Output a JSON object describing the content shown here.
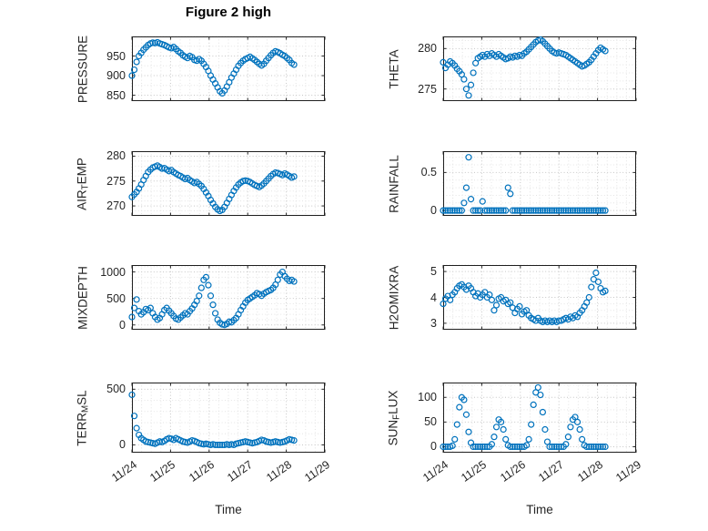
{
  "chart_data": {
    "type": "scatter",
    "title": "Figure 2 high",
    "xlabel": "Time",
    "marker_color": "#0072BD",
    "marker_style": "open-circle",
    "grid": "on-dotted-with-minor",
    "xlim": [
      0,
      5
    ],
    "xminor_step": 0.25,
    "xticks": [
      0,
      1,
      2,
      3,
      4,
      5
    ],
    "xtick_labels": [
      "11/24",
      "11/25",
      "11/26",
      "11/27",
      "11/28",
      "11/29"
    ],
    "x_unit": "days since 11/24",
    "t_days": [
      0,
      0.06,
      0.12,
      0.18,
      0.24,
      0.3,
      0.36,
      0.42,
      0.48,
      0.54,
      0.6,
      0.66,
      0.72,
      0.78,
      0.84,
      0.9,
      0.96,
      1.02,
      1.08,
      1.14,
      1.2,
      1.26,
      1.32,
      1.38,
      1.44,
      1.5,
      1.56,
      1.62,
      1.68,
      1.74,
      1.8,
      1.86,
      1.92,
      1.98,
      2.04,
      2.1,
      2.16,
      2.22,
      2.28,
      2.34,
      2.4,
      2.46,
      2.52,
      2.58,
      2.64,
      2.7,
      2.76,
      2.82,
      2.88,
      2.94,
      3,
      3.06,
      3.12,
      3.18,
      3.24,
      3.3,
      3.36,
      3.42,
      3.48,
      3.54,
      3.6,
      3.66,
      3.72,
      3.78,
      3.84,
      3.9,
      3.96,
      4.02,
      4.08,
      4.14,
      4.2
    ],
    "subplots": [
      {
        "name": "PRESSURE",
        "label_parts": [
          {
            "text": "PRESSURE"
          }
        ],
        "ylim": [
          835,
          1000
        ],
        "yticks": [
          850,
          900,
          950
        ],
        "yminor_step": 25,
        "values": [
          900,
          915,
          935,
          950,
          958,
          966,
          972,
          978,
          982,
          984,
          983,
          985,
          982,
          980,
          978,
          975,
          972,
          970,
          973,
          968,
          962,
          958,
          952,
          948,
          945,
          950,
          947,
          940,
          938,
          942,
          938,
          930,
          922,
          912,
          900,
          890,
          880,
          870,
          860,
          855,
          862,
          872,
          883,
          895,
          905,
          915,
          925,
          932,
          938,
          942,
          945,
          948,
          944,
          940,
          935,
          930,
          926,
          930,
          938,
          945,
          952,
          958,
          962,
          960,
          957,
          953,
          950,
          945,
          940,
          932,
          928
        ]
      },
      {
        "name": "THETA",
        "label_parts": [
          {
            "text": "THETA"
          }
        ],
        "ylim": [
          273.5,
          281.5
        ],
        "yticks": [
          275,
          280
        ],
        "yminor_step": 1,
        "values": [
          278.3,
          277.6,
          278.0,
          278.4,
          278.2,
          277.9,
          277.5,
          277.2,
          276.8,
          276.2,
          275.0,
          274.2,
          275.5,
          277.0,
          278.2,
          278.8,
          279.0,
          279.2,
          279.0,
          279.3,
          279.1,
          279.4,
          279.2,
          279.0,
          279.3,
          279.1,
          278.9,
          278.7,
          278.8,
          279.0,
          278.9,
          279.1,
          279.0,
          279.2,
          279.1,
          279.4,
          279.6,
          279.9,
          280.2,
          280.5,
          280.8,
          281.0,
          281.1,
          280.9,
          280.6,
          280.3,
          280.0,
          279.7,
          279.5,
          279.4,
          279.5,
          279.4,
          279.3,
          279.2,
          279.0,
          278.8,
          278.6,
          278.4,
          278.2,
          278.0,
          277.8,
          277.9,
          278.1,
          278.3,
          278.6,
          279.0,
          279.4,
          279.8,
          280.1,
          279.9,
          279.7
        ]
      },
      {
        "name": "AIR_TEMP",
        "label_parts": [
          {
            "text": "AIR"
          },
          {
            "text": "T",
            "sub": true
          },
          {
            "text": "EMP"
          }
        ],
        "ylim": [
          268,
          281
        ],
        "yticks": [
          270,
          275,
          280
        ],
        "yminor_step": 1,
        "values": [
          271.8,
          272.3,
          272.8,
          273.5,
          274.3,
          275.2,
          276.0,
          276.8,
          277.3,
          277.7,
          277.9,
          278.1,
          277.8,
          277.5,
          277.6,
          277.3,
          277.0,
          277.2,
          276.8,
          276.5,
          276.2,
          276.0,
          275.7,
          275.4,
          275.6,
          275.2,
          274.9,
          274.6,
          274.8,
          274.4,
          274.0,
          273.4,
          272.7,
          272.0,
          271.2,
          270.5,
          269.8,
          269.3,
          269.0,
          269.2,
          269.8,
          270.6,
          271.4,
          272.2,
          273.0,
          273.7,
          274.3,
          274.7,
          275.0,
          275.1,
          275.0,
          274.8,
          274.5,
          274.2,
          274.0,
          273.8,
          274.1,
          274.5,
          275.0,
          275.5,
          276.0,
          276.4,
          276.7,
          276.6,
          276.4,
          276.2,
          276.5,
          276.3,
          276.0,
          275.7,
          275.9
        ]
      },
      {
        "name": "RAINFALL",
        "label_parts": [
          {
            "text": "RAINFALL"
          }
        ],
        "ylim": [
          -0.07,
          0.78
        ],
        "yticks": [
          0,
          0.5
        ],
        "yminor_step": 0.1,
        "values": [
          0,
          0,
          0,
          0,
          0,
          0,
          0,
          0,
          0,
          0.1,
          0.3,
          0.7,
          0.15,
          0,
          0,
          0,
          0,
          0.12,
          0,
          0,
          0,
          0,
          0,
          0,
          0,
          0,
          0,
          0,
          0.3,
          0.22,
          0,
          0,
          0,
          0,
          0,
          0,
          0,
          0,
          0,
          0,
          0,
          0,
          0,
          0,
          0,
          0,
          0,
          0,
          0,
          0,
          0,
          0,
          0,
          0,
          0,
          0,
          0,
          0,
          0,
          0,
          0,
          0,
          0,
          0,
          0,
          0,
          0,
          0,
          0,
          0,
          0
        ]
      },
      {
        "name": "MIXDEPTH",
        "label_parts": [
          {
            "text": "MIXDEPTH"
          }
        ],
        "ylim": [
          -90,
          1130
        ],
        "yticks": [
          0,
          500,
          1000
        ],
        "yminor_step": 100,
        "values": [
          150,
          320,
          480,
          260,
          200,
          240,
          300,
          280,
          320,
          220,
          150,
          100,
          130,
          200,
          280,
          320,
          270,
          220,
          170,
          120,
          100,
          140,
          180,
          220,
          200,
          260,
          310,
          380,
          450,
          550,
          700,
          850,
          900,
          750,
          550,
          380,
          220,
          100,
          40,
          10,
          0,
          20,
          60,
          50,
          90,
          130,
          200,
          280,
          350,
          420,
          470,
          500,
          530,
          560,
          600,
          580,
          550,
          590,
          620,
          640,
          660,
          700,
          760,
          850,
          950,
          1000,
          920,
          870,
          830,
          850,
          820
        ]
      },
      {
        "name": "H2OMIXRA",
        "label_parts": [
          {
            "text": "H2OMIXRA"
          }
        ],
        "ylim": [
          2.75,
          5.25
        ],
        "yticks": [
          3,
          4,
          5
        ],
        "yminor_step": 0.25,
        "values": [
          3.75,
          3.95,
          4.05,
          3.9,
          4.1,
          4.2,
          4.35,
          4.45,
          4.5,
          4.4,
          4.3,
          4.45,
          4.35,
          4.2,
          4.05,
          4.15,
          4.0,
          4.1,
          4.2,
          4.0,
          4.1,
          3.9,
          3.5,
          3.7,
          3.95,
          4.0,
          3.85,
          3.9,
          3.75,
          3.8,
          3.6,
          3.4,
          3.55,
          3.65,
          3.35,
          3.45,
          3.5,
          3.3,
          3.2,
          3.15,
          3.1,
          3.2,
          3.1,
          3.05,
          3.1,
          3.05,
          3.1,
          3.05,
          3.1,
          3.05,
          3.1,
          3.1,
          3.15,
          3.2,
          3.15,
          3.25,
          3.2,
          3.3,
          3.25,
          3.4,
          3.5,
          3.65,
          3.8,
          4.0,
          4.4,
          4.7,
          4.95,
          4.6,
          4.35,
          4.2,
          4.25
        ]
      },
      {
        "name": "TERR_MSL",
        "label_parts": [
          {
            "text": "TERR"
          },
          {
            "text": "M",
            "sub": true
          },
          {
            "text": "SL"
          }
        ],
        "ylim": [
          -70,
          560
        ],
        "yticks": [
          0,
          500
        ],
        "yminor_step": 100,
        "values": [
          450,
          260,
          150,
          90,
          60,
          45,
          30,
          25,
          20,
          15,
          10,
          20,
          30,
          25,
          35,
          50,
          60,
          55,
          45,
          60,
          50,
          40,
          30,
          25,
          20,
          30,
          40,
          35,
          25,
          15,
          10,
          5,
          10,
          5,
          0,
          5,
          0,
          0,
          0,
          0,
          0,
          5,
          0,
          5,
          0,
          10,
          15,
          20,
          25,
          30,
          25,
          20,
          15,
          20,
          25,
          35,
          45,
          40,
          30,
          25,
          20,
          25,
          30,
          25,
          20,
          25,
          30,
          40,
          50,
          45,
          40
        ]
      },
      {
        "name": "SUN_FLUX",
        "label_parts": [
          {
            "text": "SUN"
          },
          {
            "text": "F",
            "sub": true
          },
          {
            "text": "LUX"
          }
        ],
        "ylim": [
          -12,
          130
        ],
        "yticks": [
          0,
          50,
          100
        ],
        "yminor_step": 25,
        "values": [
          0,
          0,
          0,
          0,
          2,
          15,
          45,
          80,
          100,
          95,
          65,
          30,
          8,
          0,
          0,
          0,
          0,
          0,
          0,
          0,
          0,
          5,
          20,
          40,
          55,
          50,
          35,
          15,
          3,
          0,
          0,
          0,
          0,
          0,
          0,
          0,
          3,
          15,
          45,
          85,
          110,
          120,
          105,
          70,
          35,
          10,
          0,
          0,
          0,
          0,
          0,
          0,
          0,
          5,
          20,
          40,
          55,
          60,
          50,
          35,
          15,
          3,
          0,
          0,
          0,
          0,
          0,
          0,
          0,
          0,
          0
        ]
      }
    ]
  }
}
